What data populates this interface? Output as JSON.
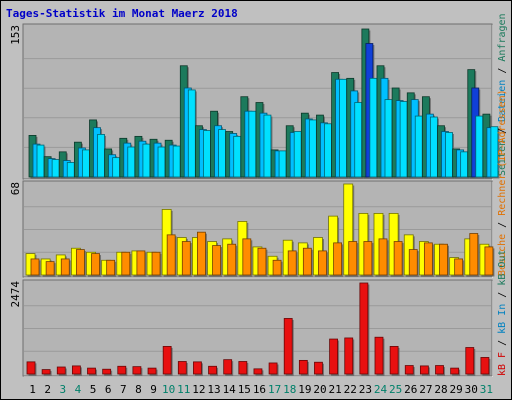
{
  "page": {
    "title": "Tages-Statistik im Monat Maerz 2018"
  },
  "colors": {
    "background": "#c0c0c0",
    "panel": "#b4b4b4",
    "grid": "#9a9a9a",
    "title": "#0000c8",
    "hits": "#1c7a5c",
    "files": "#00bfff",
    "pages": "#00e0ff",
    "visits_dark": "#1040d8",
    "sites": "#ffff00",
    "visits": "#ff8c00",
    "kbin": "#e81010",
    "weekend_label": "#00806a",
    "legend_hits": "#1c7a5c",
    "legend_files": "#0080c0",
    "legend_sites": "#808000",
    "legend_visits": "#e07000",
    "legend_kb": "#d00000"
  },
  "chart_data": [
    {
      "type": "bar",
      "title": "Tages-Statistik im Monat Maerz 2018",
      "ylabel_max": "153",
      "ylim": [
        0,
        153
      ],
      "x": [
        1,
        2,
        3,
        4,
        5,
        6,
        7,
        8,
        9,
        10,
        11,
        12,
        13,
        14,
        15,
        16,
        17,
        18,
        19,
        20,
        21,
        22,
        23,
        24,
        25,
        26,
        27,
        28,
        29,
        30,
        31
      ],
      "weekend_days": [
        3,
        4,
        10,
        11,
        17,
        18,
        24,
        25,
        31
      ],
      "series": [
        {
          "name": "Anfragen",
          "values": [
            43,
            21,
            26,
            36,
            59,
            29,
            40,
            42,
            39,
            38,
            115,
            53,
            68,
            47,
            83,
            77,
            28,
            53,
            66,
            64,
            108,
            102,
            153,
            115,
            92,
            87,
            83,
            53,
            29,
            111,
            65
          ]
        },
        {
          "name": "Dateien",
          "values": [
            34,
            19,
            17,
            30,
            51,
            23,
            35,
            37,
            35,
            33,
            92,
            49,
            53,
            45,
            68,
            66,
            27,
            46,
            60,
            56,
            101,
            89,
            138,
            102,
            79,
            80,
            65,
            47,
            28,
            92,
            51
          ]
        },
        {
          "name": "Seiten",
          "values": [
            33,
            18,
            15,
            28,
            44,
            20,
            31,
            34,
            31,
            32,
            90,
            48,
            49,
            42,
            68,
            64,
            27,
            47,
            59,
            55,
            101,
            77,
            102,
            80,
            78,
            63,
            62,
            46,
            26,
            63,
            52
          ]
        }
      ]
    },
    {
      "type": "bar",
      "ylabel_max": "68",
      "ylim": [
        0,
        68
      ],
      "x": [
        1,
        2,
        3,
        4,
        5,
        6,
        7,
        8,
        9,
        10,
        11,
        12,
        13,
        14,
        15,
        16,
        17,
        18,
        19,
        20,
        21,
        22,
        23,
        24,
        25,
        26,
        27,
        28,
        29,
        30,
        31
      ],
      "series": [
        {
          "name": "Rechner (IP-Adressen)",
          "values": [
            16,
            12,
            15,
            20,
            17,
            11,
            17,
            18,
            17,
            49,
            28,
            28,
            25,
            27,
            40,
            21,
            14,
            26,
            24,
            28,
            44,
            68,
            46,
            46,
            46,
            30,
            25,
            23,
            13,
            27,
            23
          ]
        },
        {
          "name": "Besuche",
          "values": [
            12,
            10,
            12,
            19,
            16,
            11,
            17,
            18,
            17,
            30,
            25,
            32,
            22,
            23,
            27,
            20,
            11,
            18,
            20,
            18,
            24,
            25,
            25,
            27,
            25,
            19,
            24,
            23,
            12,
            31,
            21
          ]
        }
      ]
    },
    {
      "type": "bar",
      "ylabel_max": "2474",
      "ylim": [
        0,
        2474
      ],
      "x": [
        1,
        2,
        3,
        4,
        5,
        6,
        7,
        8,
        9,
        10,
        11,
        12,
        13,
        14,
        15,
        16,
        17,
        18,
        19,
        20,
        21,
        22,
        23,
        24,
        25,
        26,
        27,
        28,
        29,
        30,
        31
      ],
      "series": [
        {
          "name": "kB F",
          "values": [
            330,
            120,
            190,
            220,
            160,
            130,
            210,
            200,
            160,
            750,
            340,
            330,
            210,
            390,
            340,
            140,
            300,
            1510,
            370,
            320,
            950,
            980,
            2474,
            1000,
            750,
            230,
            220,
            230,
            160,
            720,
            450
          ]
        }
      ]
    }
  ],
  "legend": {
    "hits": "Anfragen",
    "files": "Dateien",
    "pages": "Seiten",
    "sites": "Rechner (IP-Adressen)",
    "visits": "Besuche",
    "kbout": "kB Out",
    "kbin": "kB In",
    "kbf": "kB F"
  }
}
